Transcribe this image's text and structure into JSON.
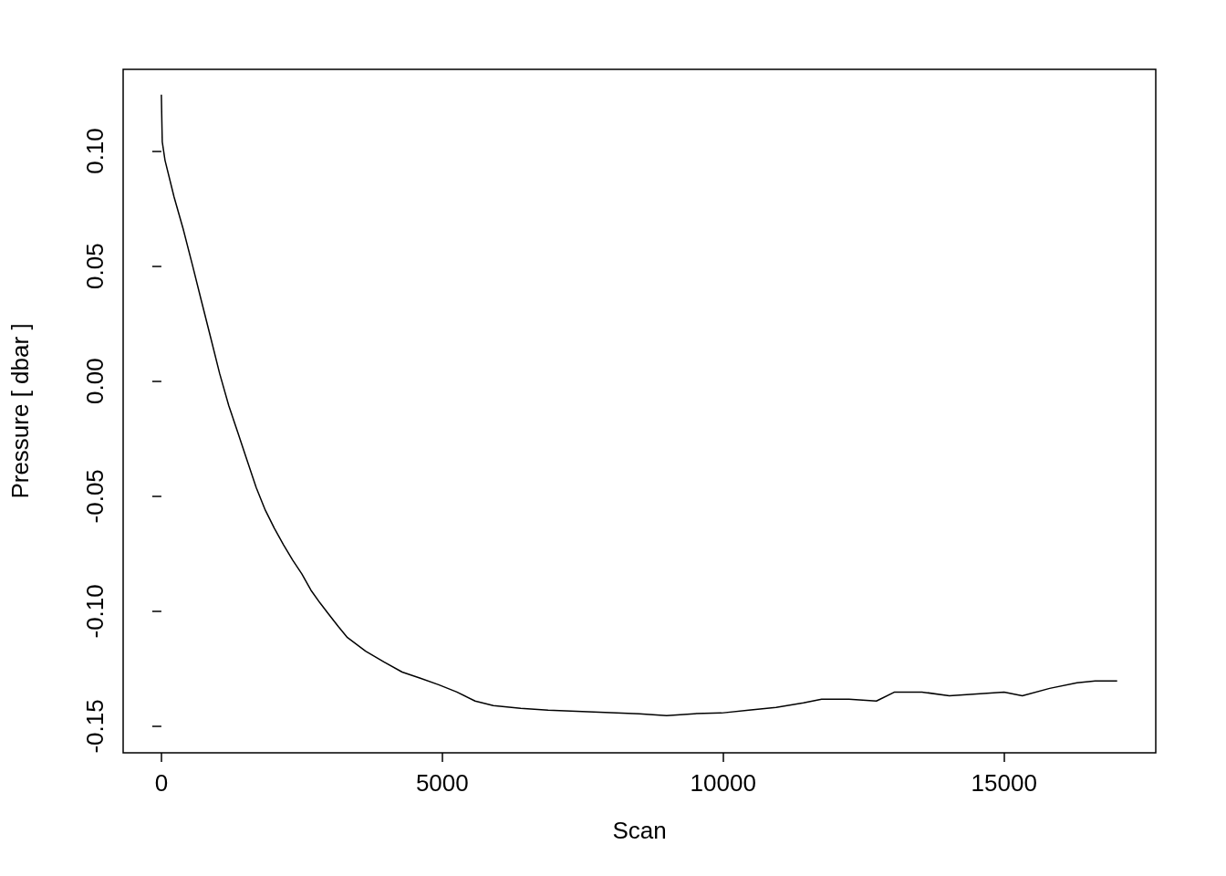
{
  "chart_data": {
    "type": "line",
    "xlabel": "Scan",
    "ylabel": "Pressure [ dbar ]",
    "xlim": [
      -680,
      17700
    ],
    "ylim": [
      -0.1615,
      0.1355
    ],
    "xticks": [
      0,
      5000,
      10000,
      15000
    ],
    "yticks": [
      {
        "value": -0.15,
        "label": "-0.15"
      },
      {
        "value": -0.1,
        "label": "-0.10"
      },
      {
        "value": -0.05,
        "label": "-0.05"
      },
      {
        "value": 0,
        "label": "0.00"
      },
      {
        "value": 0.05,
        "label": "0.05"
      },
      {
        "value": 0.1,
        "label": "0.10"
      }
    ],
    "grid": false,
    "marker": "none",
    "line_style": "solid",
    "series": [
      {
        "color": "#000000",
        "x": [
          0,
          16,
          65,
          227,
          390,
          552,
          714,
          877,
          1039,
          1201,
          1364,
          1526,
          1688,
          1851,
          2013,
          2175,
          2338,
          2500,
          2662,
          2825,
          2987,
          3149,
          3312,
          3636,
          3961,
          4286,
          4610,
          4935,
          5260,
          5584,
          5909,
          6396,
          6883,
          7695,
          8506,
          8994,
          9481,
          9968,
          10455,
          10942,
          11429,
          11753,
          12240,
          12727,
          13052,
          13539,
          14026,
          14513,
          15000,
          15325,
          15812,
          16299,
          16623,
          17013
        ],
        "values": [
          0.1245,
          0.104,
          0.096,
          0.08,
          0.066,
          0.0506,
          0.0348,
          0.019,
          0.0032,
          -0.0107,
          -0.0225,
          -0.0344,
          -0.0462,
          -0.0561,
          -0.064,
          -0.0711,
          -0.0778,
          -0.0837,
          -0.0908,
          -0.0964,
          -0.1015,
          -0.1066,
          -0.1114,
          -0.1173,
          -0.122,
          -0.1264,
          -0.1291,
          -0.1319,
          -0.1351,
          -0.139,
          -0.141,
          -0.1422,
          -0.143,
          -0.1438,
          -0.1445,
          -0.1453,
          -0.1445,
          -0.1442,
          -0.143,
          -0.1418,
          -0.1398,
          -0.1382,
          -0.1382,
          -0.139,
          -0.1351,
          -0.1351,
          -0.1367,
          -0.1359,
          -0.1351,
          -0.1367,
          -0.1335,
          -0.1311,
          -0.1303,
          -0.1303
        ]
      }
    ]
  }
}
